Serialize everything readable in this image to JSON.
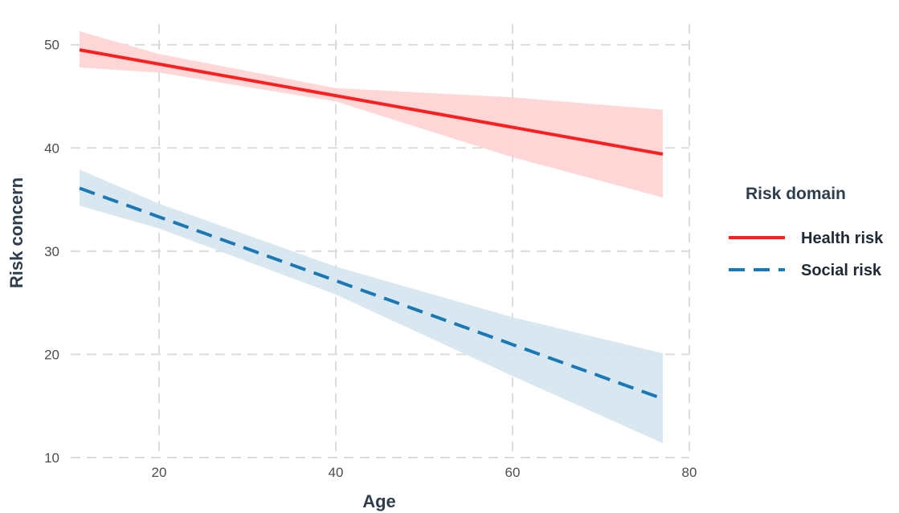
{
  "chart_data": {
    "type": "line",
    "title": "",
    "xlabel": "Age",
    "ylabel": "Risk concern",
    "xlim": [
      10,
      80
    ],
    "ylim": [
      10,
      52
    ],
    "x_ticks": [
      20,
      40,
      60,
      80
    ],
    "y_ticks": [
      10,
      20,
      30,
      40,
      50
    ],
    "grid": true,
    "legend": {
      "title": "Risk domain",
      "position": "right"
    },
    "series": [
      {
        "name": "Health risk",
        "color": "#ff1f1f",
        "band_color": "#ffd3d3",
        "line_style": "solid",
        "x": [
          11,
          77
        ],
        "y": [
          49.5,
          39.4
        ],
        "ci_x": [
          11,
          20,
          40,
          60,
          77
        ],
        "ci_lower": [
          47.8,
          47.3,
          44.5,
          39.1,
          35.2
        ],
        "ci_upper": [
          51.3,
          49.1,
          45.8,
          44.9,
          43.7
        ]
      },
      {
        "name": "Social risk",
        "color": "#1a78b4",
        "band_color": "#d5e4ef",
        "line_style": "dashed",
        "x": [
          11,
          77
        ],
        "y": [
          36.1,
          15.7
        ],
        "ci_x": [
          11,
          20,
          40,
          60,
          77
        ],
        "ci_lower": [
          34.4,
          32.2,
          25.8,
          17.9,
          11.4
        ],
        "ci_upper": [
          37.9,
          34.6,
          28.5,
          23.6,
          20.1
        ]
      }
    ]
  }
}
